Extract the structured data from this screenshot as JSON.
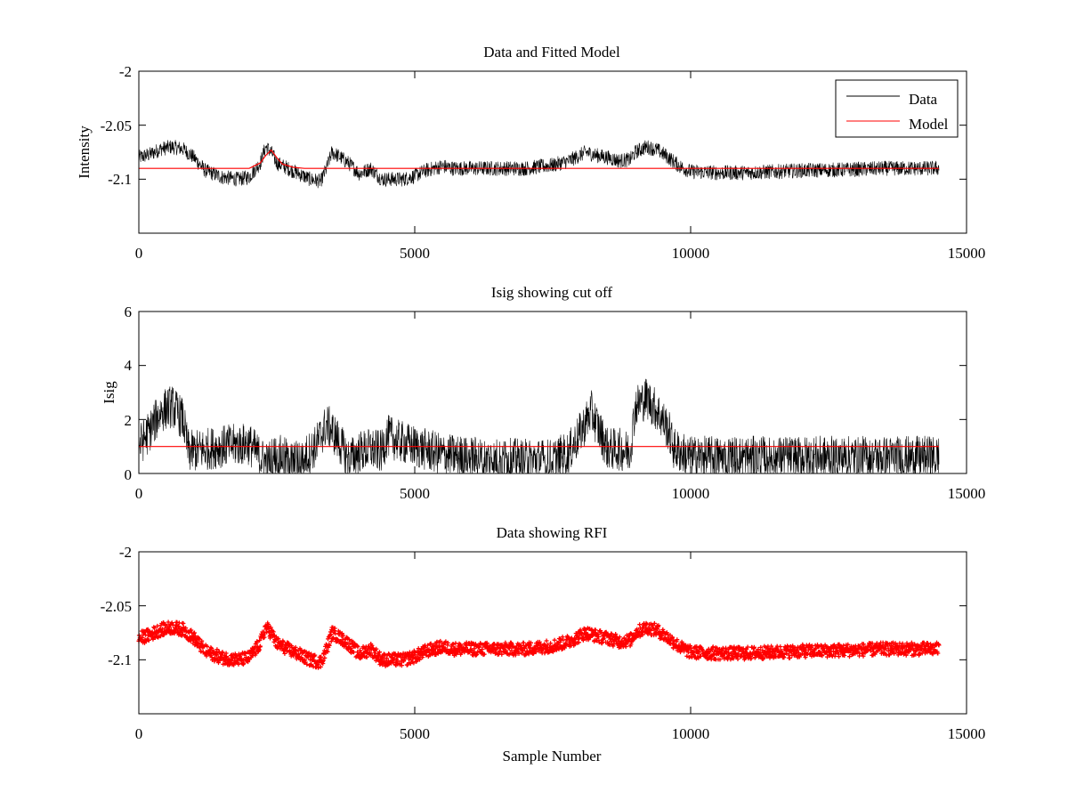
{
  "chart_data": [
    {
      "id": "top",
      "type": "line",
      "title": "Data and Fitted Model",
      "xlabel": "",
      "ylabel": "Intensity",
      "xlim": [
        0,
        15000
      ],
      "ylim": [
        -2.15,
        -2.0
      ],
      "xticks": [
        0,
        5000,
        10000,
        15000
      ],
      "xtick_labels": [
        "0",
        "5000",
        "10000",
        "15000"
      ],
      "yticks": [
        -2.0,
        -2.05,
        -2.1
      ],
      "ytick_labels": [
        "-2",
        "-2.05",
        "-2.1"
      ],
      "legend": {
        "position": "top-right",
        "entries": [
          {
            "label": "Data",
            "color": "#000000"
          },
          {
            "label": "Model",
            "color": "#ff0000"
          }
        ]
      },
      "series": [
        {
          "name": "Data",
          "color": "#000000",
          "style": "line",
          "noise": 0.007,
          "n_samples": 14500,
          "envelope_x": [
            0,
            200,
            400,
            600,
            800,
            1000,
            1200,
            1500,
            1800,
            2000,
            2200,
            2300,
            2400,
            2500,
            2700,
            2900,
            3100,
            3300,
            3400,
            3500,
            3600,
            3800,
            4000,
            4200,
            4400,
            4600,
            4800,
            5000,
            5200,
            5500,
            5700,
            6000,
            6500,
            7000,
            7500,
            7800,
            8100,
            8300,
            8500,
            8700,
            8900,
            9000,
            9200,
            9400,
            9600,
            9800,
            10000,
            10500,
            11000,
            12000,
            13000,
            13500,
            14000,
            14500
          ],
          "envelope_y": [
            -2.08,
            -2.077,
            -2.072,
            -2.07,
            -2.072,
            -2.08,
            -2.092,
            -2.098,
            -2.1,
            -2.098,
            -2.085,
            -2.07,
            -2.075,
            -2.085,
            -2.09,
            -2.095,
            -2.1,
            -2.102,
            -2.09,
            -2.075,
            -2.078,
            -2.085,
            -2.095,
            -2.09,
            -2.1,
            -2.1,
            -2.1,
            -2.097,
            -2.092,
            -2.088,
            -2.09,
            -2.09,
            -2.09,
            -2.09,
            -2.087,
            -2.083,
            -2.075,
            -2.078,
            -2.08,
            -2.083,
            -2.082,
            -2.075,
            -2.07,
            -2.073,
            -2.08,
            -2.088,
            -2.093,
            -2.094,
            -2.094,
            -2.092,
            -2.091,
            -2.09,
            -2.09,
            -2.09
          ]
        },
        {
          "name": "Model",
          "color": "#ff0000",
          "style": "line",
          "x": [
            0,
            2000,
            2200,
            2300,
            2400,
            2500,
            2600,
            2800,
            3000,
            14500
          ],
          "y": [
            -2.09,
            -2.09,
            -2.085,
            -2.078,
            -2.073,
            -2.08,
            -2.086,
            -2.089,
            -2.09,
            -2.09
          ]
        }
      ]
    },
    {
      "id": "middle",
      "type": "line",
      "title": "Isig showing cut off",
      "xlabel": "",
      "ylabel": "Isig",
      "xlim": [
        0,
        15000
      ],
      "ylim": [
        0,
        6
      ],
      "xticks": [
        0,
        5000,
        10000,
        15000
      ],
      "xtick_labels": [
        "0",
        "5000",
        "10000",
        "15000"
      ],
      "yticks": [
        0,
        2,
        4,
        6
      ],
      "ytick_labels": [
        "0",
        "2",
        "4",
        "6"
      ],
      "series": [
        {
          "name": "Isig",
          "color": "#000000",
          "style": "line",
          "noise": 0.8,
          "floor": 0,
          "n_samples": 14500,
          "envelope_x": [
            0,
            200,
            400,
            600,
            800,
            900,
            1200,
            1500,
            2000,
            2200,
            2300,
            2500,
            2800,
            3000,
            3200,
            3400,
            3500,
            3700,
            3800,
            4000,
            4200,
            4400,
            4500,
            4700,
            5000,
            5500,
            6000,
            7000,
            7500,
            7800,
            8000,
            8200,
            8300,
            8500,
            8700,
            8900,
            9000,
            9200,
            9400,
            9600,
            9700,
            10000,
            11000,
            12000,
            13000,
            14000,
            14500
          ],
          "envelope_y": [
            1.0,
            1.6,
            2.3,
            2.5,
            2.0,
            0.8,
            0.9,
            1.0,
            1.1,
            0.6,
            0.4,
            0.7,
            0.4,
            0.6,
            1.0,
            1.8,
            1.6,
            0.9,
            0.5,
            0.8,
            0.9,
            0.8,
            1.4,
            1.2,
            1.0,
            0.7,
            0.6,
            0.5,
            0.5,
            0.8,
            1.5,
            2.3,
            1.8,
            0.9,
            0.9,
            0.8,
            2.5,
            2.8,
            2.3,
            1.6,
            0.9,
            0.6,
            0.6,
            0.6,
            0.6,
            0.6,
            0.6
          ]
        },
        {
          "name": "Cut off",
          "color": "#ff0000",
          "style": "line",
          "x": [
            0,
            14500
          ],
          "y": [
            1.0,
            1.0
          ]
        }
      ]
    },
    {
      "id": "bottom",
      "type": "scatter",
      "title": "Data showing RFI",
      "xlabel": "Sample Number",
      "ylabel": "",
      "xlim": [
        0,
        15000
      ],
      "ylim": [
        -2.15,
        -2.0
      ],
      "xticks": [
        0,
        5000,
        10000,
        15000
      ],
      "xtick_labels": [
        "0",
        "5000",
        "10000",
        "15000"
      ],
      "yticks": [
        -2.0,
        -2.05,
        -2.1
      ],
      "ytick_labels": [
        "-2",
        "-2.05",
        "-2.1"
      ],
      "series": [
        {
          "name": "RFI data",
          "color": "#ff0000",
          "style": "markers",
          "noise": 0.006,
          "n_samples": 14500,
          "envelope_ref": "top.Data"
        }
      ]
    }
  ]
}
